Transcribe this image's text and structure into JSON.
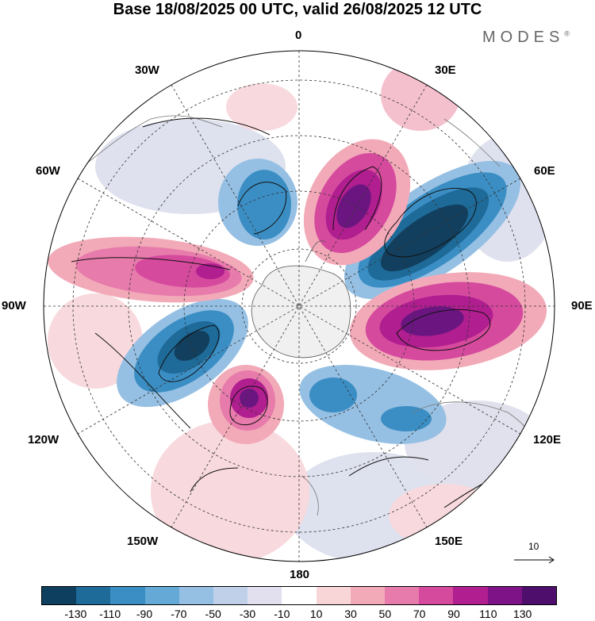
{
  "title": "Base 18/08/2025 00 UTC, valid 26/08/2025 12 UTC",
  "brand": "MODES",
  "brand_mark": "®",
  "longitudes": {
    "top": "0",
    "tr": "30E",
    "tl": "30W",
    "rt": "60E",
    "lt": "60W",
    "right": "90E",
    "left": "90W",
    "rb": "120E",
    "lb": "120W",
    "br": "150E",
    "bl": "150W",
    "bottom": "180"
  },
  "vector_reference": "10",
  "colorbar": {
    "colors": [
      "#0f3f5f",
      "#1e6a99",
      "#3b8ec4",
      "#65a9d6",
      "#96c0e3",
      "#bfd0e8",
      "#e2e0ee",
      "#ffffff",
      "#f8d6d8",
      "#f2aab8",
      "#e77bab",
      "#d64a9e",
      "#b01e8f",
      "#7e1287",
      "#4e0f6c"
    ],
    "labels": [
      "-130",
      "-110",
      "-90",
      "-70",
      "-50",
      "-30",
      "-10",
      "10",
      "30",
      "50",
      "70",
      "90",
      "110",
      "130"
    ]
  },
  "anomaly_colors": {
    "strong_neg": "#123f5e",
    "neg": "#3a86bd",
    "weak_neg": "#bcd4ea",
    "strong_pos": "#6b1680",
    "pos": "#d84b9e",
    "weak_pos": "#f4c7d2"
  }
}
